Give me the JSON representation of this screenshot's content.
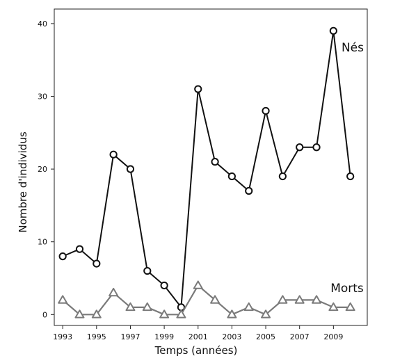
{
  "chart_data": {
    "type": "line",
    "xlabel": "Temps (années)",
    "ylabel": "Nombre d'individus",
    "xlim": [
      1992.5,
      2011
    ],
    "ylim": [
      -1.5,
      42
    ],
    "x_ticks": [
      1993,
      1995,
      1997,
      1999,
      2001,
      2003,
      2005,
      2007,
      2009
    ],
    "y_ticks": [
      0,
      10,
      20,
      30,
      40
    ],
    "grid": false,
    "x": [
      1993,
      1994,
      1995,
      1996,
      1997,
      1998,
      1999,
      2000,
      2001,
      2002,
      2003,
      2004,
      2005,
      2006,
      2007,
      2008,
      2009,
      2010
    ],
    "series": [
      {
        "name": "Nés",
        "marker": "circle",
        "color": "#111111",
        "values": [
          8,
          9,
          7,
          22,
          20,
          6,
          4,
          1,
          31,
          21,
          19,
          17,
          28,
          19,
          23,
          23,
          39,
          19
        ]
      },
      {
        "name": "Morts",
        "marker": "triangle",
        "color": "#7a7a7a",
        "values": [
          2,
          0,
          0,
          3,
          1,
          1,
          0,
          0,
          4,
          2,
          0,
          1,
          0,
          2,
          2,
          2,
          1,
          1
        ]
      }
    ]
  }
}
